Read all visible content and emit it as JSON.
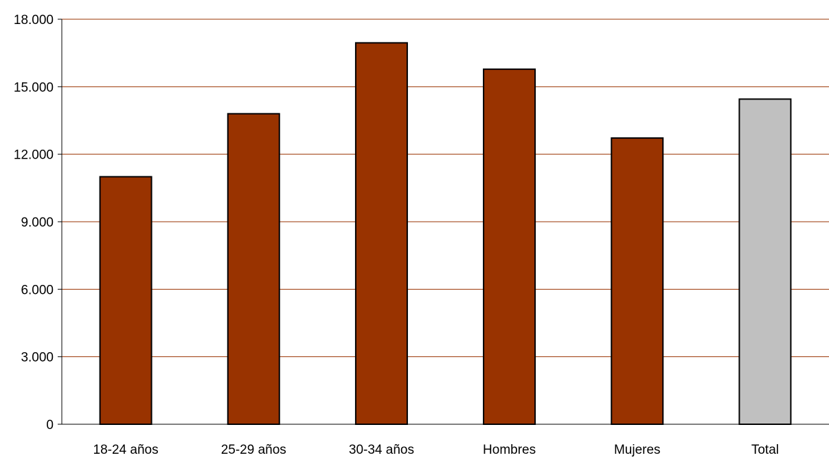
{
  "chart_data": {
    "type": "bar",
    "title": "",
    "xlabel": "",
    "ylabel": "",
    "categories": [
      "18-24 años",
      "25-29 años",
      "30-34 años",
      "Hombres",
      "Mujeres",
      "Total"
    ],
    "values": [
      11000,
      13800,
      16950,
      15780,
      12720,
      14450
    ],
    "ylim": [
      0,
      18000
    ],
    "yticks": [
      0,
      3000,
      6000,
      9000,
      12000,
      15000,
      18000
    ],
    "ytick_labels": [
      "0",
      "3.000",
      "6.000",
      "9.000",
      "12.000",
      "15.000",
      "18.000"
    ],
    "grid": true,
    "legend": "none",
    "colors": {
      "bar": "#993300",
      "highlight_bar": "#c0c0c0",
      "gridline": "#993300",
      "bar_outline": "#000000"
    },
    "highlight_index": 5
  }
}
